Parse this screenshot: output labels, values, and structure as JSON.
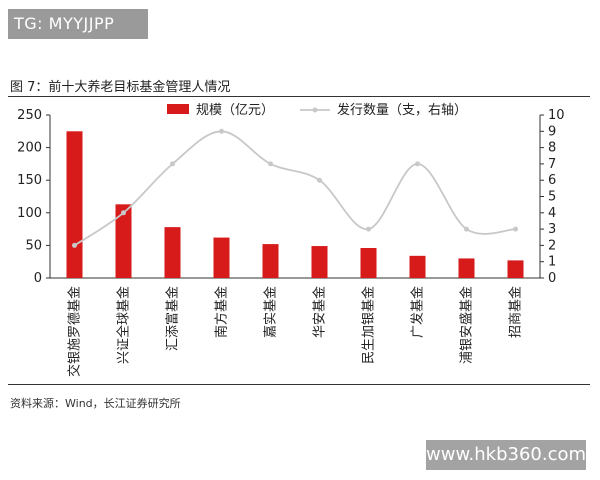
{
  "badge": {
    "text": "TG: MYYJJPP"
  },
  "figure": {
    "title": "图 7：前十大养老目标基金管理人情况"
  },
  "source": {
    "text": "资料来源：Wind，长江证券研究所"
  },
  "watermark": {
    "text": "www.hkb360.com"
  },
  "colors": {
    "bar": "#d71a1a",
    "line": "#c8c8c8",
    "axis": "#333333"
  },
  "chart_data": {
    "type": "bar",
    "categories": [
      "交银施罗德基金",
      "兴证全球基金",
      "汇添富基金",
      "南方基金",
      "嘉实基金",
      "华安基金",
      "民生加银基金",
      "广发基金",
      "浦银安盛基金",
      "招商基金"
    ],
    "series": [
      {
        "name": "规模（亿元）",
        "type": "bar",
        "axis": "left",
        "values": [
          225,
          113,
          78,
          62,
          52,
          49,
          46,
          34,
          30,
          27
        ]
      },
      {
        "name": "发行数量（支，右轴）",
        "type": "line",
        "axis": "right",
        "values": [
          2,
          4,
          7,
          9,
          7,
          6,
          3,
          7,
          3,
          3
        ]
      }
    ],
    "ylim_left": [
      0,
      250
    ],
    "yticks_left": [
      "0",
      "50",
      "100",
      "150",
      "200",
      "250"
    ],
    "ylim_right": [
      0,
      10
    ],
    "yticks_right": [
      "0",
      "1",
      "2",
      "3",
      "4",
      "5",
      "6",
      "7",
      "8",
      "9",
      "10"
    ],
    "legend": "top",
    "grid": false
  }
}
